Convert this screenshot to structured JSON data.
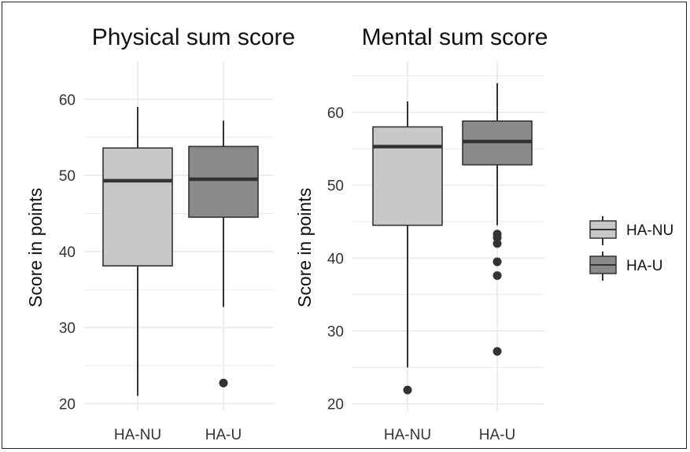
{
  "colors": {
    "HA-NU": "#c8c8c8",
    "HA-U": "#8a8a8a",
    "grid": "#ebebeb",
    "stroke": "#333333"
  },
  "legend": {
    "position": "right",
    "entries": [
      "HA-NU",
      "HA-U"
    ]
  },
  "chart_data": [
    {
      "type": "box",
      "title": "Physical sum score",
      "ylabel": "Score in points",
      "ylim": [
        19,
        65
      ],
      "yticks": [
        20,
        30,
        40,
        50,
        60
      ],
      "grid": true,
      "categories": [
        "HA-NU",
        "HA-U"
      ],
      "series": [
        {
          "name": "HA-NU",
          "min": 21.0,
          "q1": 38.1,
          "median": 49.3,
          "q3": 53.6,
          "max": 59.0,
          "outliers": []
        },
        {
          "name": "HA-U",
          "min": 32.7,
          "q1": 44.5,
          "median": 49.5,
          "q3": 53.8,
          "max": 57.2,
          "outliers": [
            22.7
          ]
        }
      ]
    },
    {
      "type": "box",
      "title": "Mental sum score",
      "ylabel": "Score in points",
      "ylim": [
        19,
        67
      ],
      "yticks": [
        20,
        30,
        40,
        50,
        60
      ],
      "grid": true,
      "categories": [
        "HA-NU",
        "HA-U"
      ],
      "series": [
        {
          "name": "HA-NU",
          "min": 25.0,
          "q1": 44.5,
          "median": 55.3,
          "q3": 58.0,
          "max": 61.5,
          "outliers": [
            21.9
          ]
        },
        {
          "name": "HA-U",
          "min": 44.5,
          "q1": 52.8,
          "median": 56.0,
          "q3": 58.8,
          "max": 64.0,
          "outliers": [
            43.3,
            42.8,
            42.0,
            39.5,
            37.6,
            27.2
          ]
        }
      ]
    }
  ]
}
